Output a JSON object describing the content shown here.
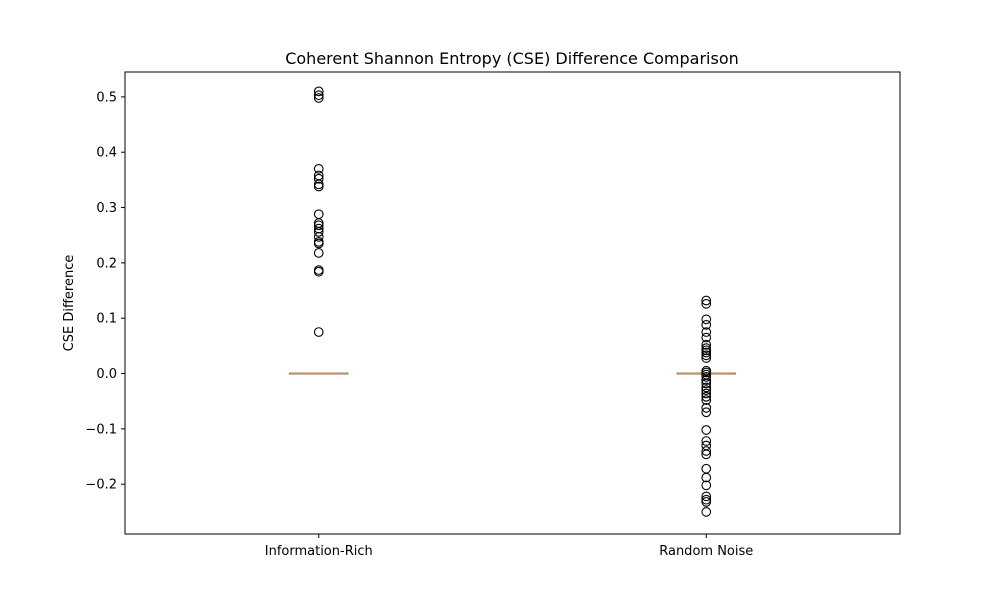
{
  "chart_data": {
    "type": "box",
    "title": "Coherent Shannon Entropy (CSE) Difference Comparison",
    "xlabel": "",
    "ylabel": "CSE Difference",
    "ylim": [
      -0.29,
      0.545
    ],
    "yticks": [
      -0.2,
      -0.1,
      0.0,
      0.1,
      0.2,
      0.3,
      0.4,
      0.5
    ],
    "ytick_labels": [
      "−0.2",
      "−0.1",
      "0.0",
      "0.1",
      "0.2",
      "0.3",
      "0.4",
      "0.5"
    ],
    "categories": [
      "Information-Rich",
      "Random Noise"
    ],
    "grid": false,
    "series": [
      {
        "category": "Information-Rich",
        "median": 0.0,
        "q1": 0.0,
        "q3": 0.0,
        "whisker_low": 0.0,
        "whisker_high": 0.0,
        "outliers": [
          0.51,
          0.503,
          0.498,
          0.37,
          0.358,
          0.352,
          0.342,
          0.338,
          0.288,
          0.272,
          0.268,
          0.262,
          0.256,
          0.247,
          0.238,
          0.235,
          0.218,
          0.187,
          0.184,
          0.075
        ]
      },
      {
        "category": "Random Noise",
        "median": 0.0,
        "q1": 0.0,
        "q3": 0.0,
        "whisker_low": 0.0,
        "whisker_high": 0.0,
        "outliers": [
          0.132,
          0.126,
          0.098,
          0.088,
          0.075,
          0.065,
          0.052,
          0.046,
          0.042,
          0.038,
          0.033,
          0.028,
          0.005,
          0.002,
          -0.002,
          -0.006,
          -0.012,
          -0.018,
          -0.025,
          -0.03,
          -0.036,
          -0.042,
          -0.048,
          -0.062,
          -0.07,
          -0.102,
          -0.122,
          -0.13,
          -0.14,
          -0.146,
          -0.172,
          -0.188,
          -0.202,
          -0.222,
          -0.228,
          -0.232,
          -0.25
        ]
      }
    ],
    "colors": {
      "median": "#e08a3c",
      "box": "#000000",
      "outlier": "#000000",
      "frame": "#000000"
    }
  }
}
